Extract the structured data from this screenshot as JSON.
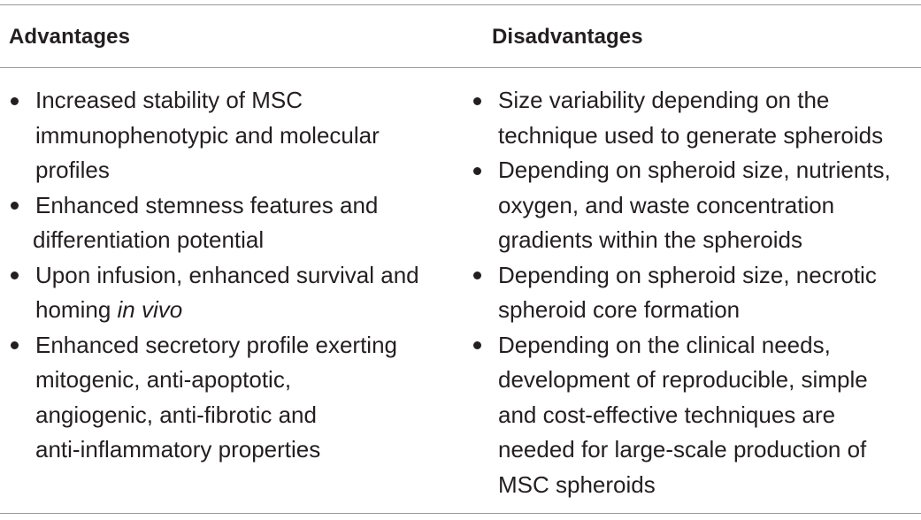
{
  "table": {
    "headers": {
      "advantages": "Advantages",
      "disadvantages": "Disadvantages"
    },
    "advantages": [
      {
        "lines": [
          "Increased stability of MSC",
          "immunophenotypic and molecular",
          "profiles"
        ]
      },
      {
        "lines": [
          "Enhanced stemness features and",
          "differentiation potential"
        ]
      },
      {
        "lines": [
          "Upon infusion, enhanced survival and",
          "homing "
        ],
        "italic": "in vivo"
      },
      {
        "lines": [
          "Enhanced secretory profile exerting",
          "mitogenic, anti-apoptotic,",
          "angiogenic, anti-fibrotic and",
          "anti-inflammatory properties"
        ]
      }
    ],
    "disadvantages": [
      {
        "lines": [
          "Size variability depending on the",
          "technique used to generate spheroids"
        ]
      },
      {
        "lines": [
          "Depending on spheroid size, nutrients,",
          "oxygen, and waste concentration",
          "gradients within the spheroids"
        ]
      },
      {
        "lines": [
          "Depending on spheroid size, necrotic",
          "spheroid core formation"
        ]
      },
      {
        "lines": [
          "Depending on the clinical needs,",
          "development of reproducible, simple",
          "and cost-effective techniques are",
          "needed for large-scale production of",
          "MSC spheroids"
        ]
      }
    ]
  }
}
